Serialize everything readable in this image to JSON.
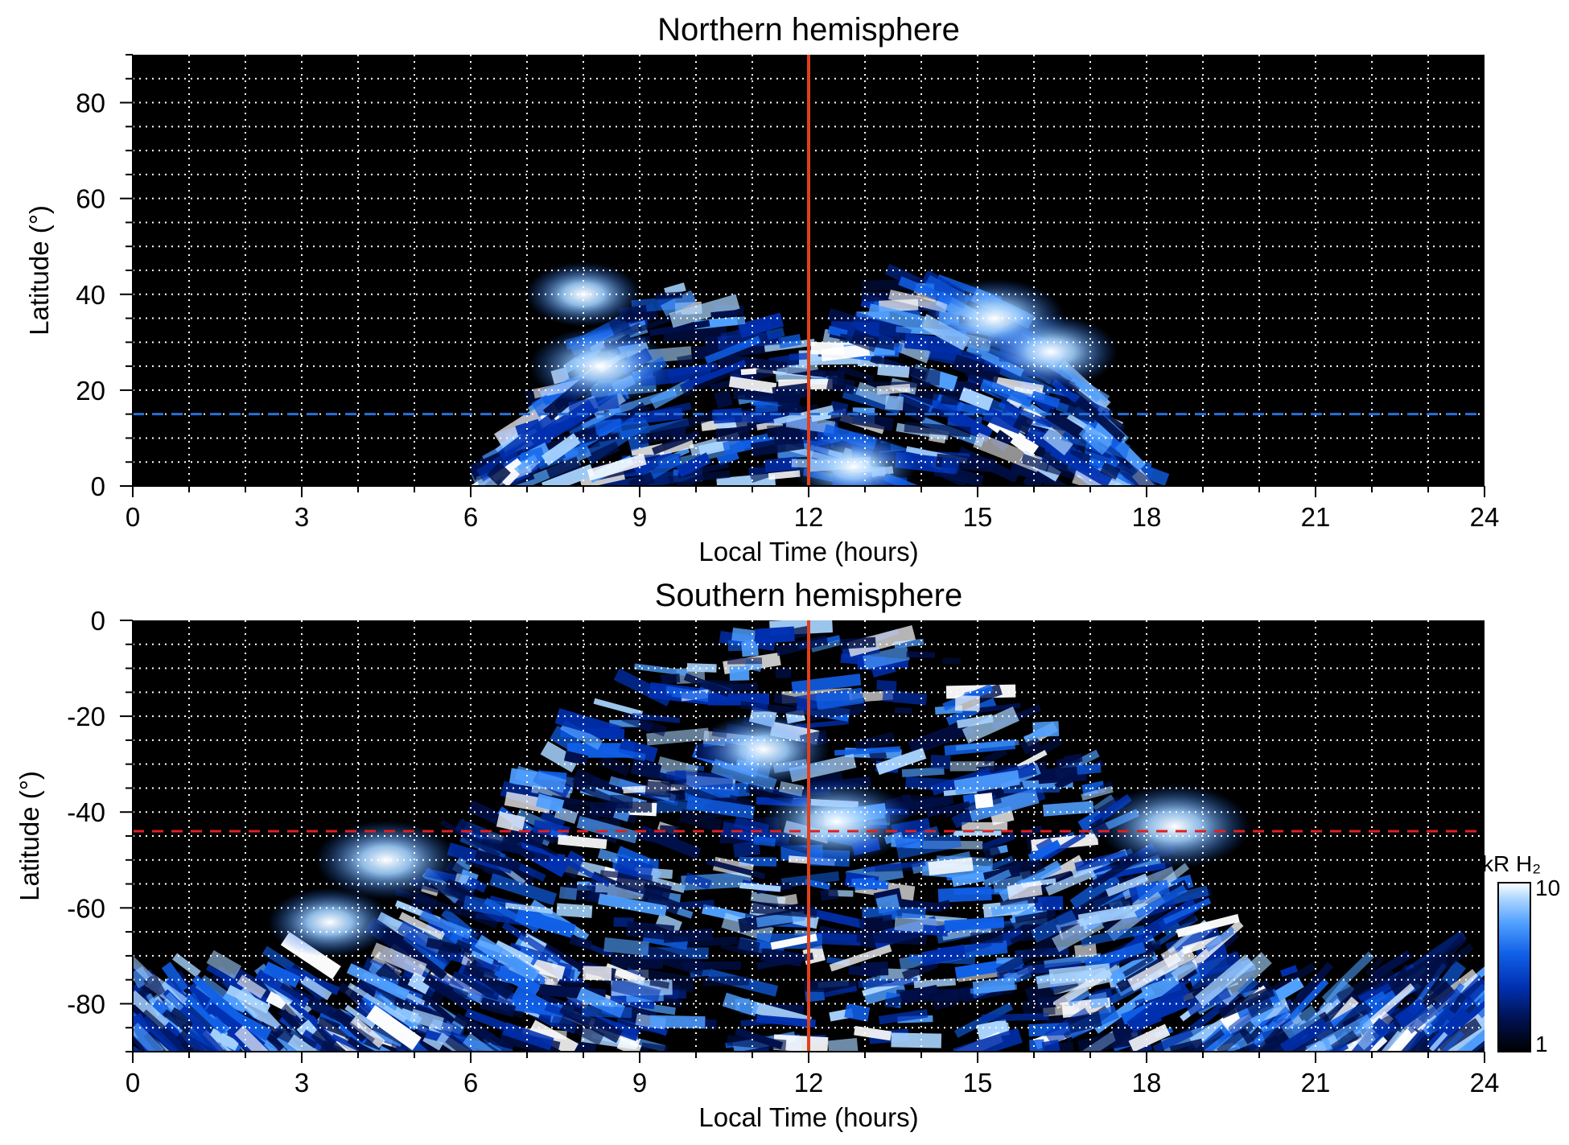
{
  "chart_data": [
    {
      "type": "heatmap",
      "title": "Northern hemisphere",
      "xlabel": "Local Time (hours)",
      "ylabel": "Latitude (°)",
      "xlim": [
        0,
        24
      ],
      "ylim": [
        0,
        90
      ],
      "xticks": [
        "0",
        "3",
        "6",
        "9",
        "12",
        "15",
        "18",
        "21",
        "24"
      ],
      "yticks": [
        "0",
        "20",
        "40",
        "60",
        "80"
      ],
      "ytick_values": [
        0,
        20,
        40,
        60,
        80
      ],
      "grid": true,
      "noon_line_x": 12,
      "dashed_line_y": 15,
      "dashed_line_color": "#2a6fd6",
      "noon_line_color": "#e0401a",
      "emission_region": {
        "lt_start": 6.3,
        "lt_end": 18.0,
        "lat_max": 55
      },
      "bright_spots": [
        {
          "lt": 8.3,
          "lat": 25,
          "intensity": 9
        },
        {
          "lt": 8.0,
          "lat": 40,
          "intensity": 6
        },
        {
          "lt": 15.3,
          "lat": 35,
          "intensity": 9
        },
        {
          "lt": 16.3,
          "lat": 28,
          "intensity": 8
        },
        {
          "lt": 12.8,
          "lat": 4,
          "intensity": 7
        }
      ]
    },
    {
      "type": "heatmap",
      "title": "Southern hemisphere",
      "xlabel": "Local Time (hours)",
      "ylabel": "Latitude (°)",
      "xlim": [
        0,
        24
      ],
      "ylim": [
        -90,
        0
      ],
      "xticks": [
        "0",
        "3",
        "6",
        "9",
        "12",
        "15",
        "18",
        "21",
        "24"
      ],
      "yticks": [
        "0",
        "-20",
        "-40",
        "-60",
        "-80"
      ],
      "ytick_values": [
        0,
        -20,
        -40,
        -60,
        -80
      ],
      "grid": true,
      "noon_line_x": 12,
      "dashed_line_y": -44,
      "dashed_line_color": "#e02020",
      "noon_line_color": "#e0401a",
      "emission_region": {
        "lt_start": 0,
        "lt_end": 24,
        "lat_min": -90
      },
      "bright_spots": [
        {
          "lt": 18.5,
          "lat": -43,
          "intensity": 10
        },
        {
          "lt": 12.5,
          "lat": -42,
          "intensity": 10
        },
        {
          "lt": 4.5,
          "lat": -50,
          "intensity": 9
        },
        {
          "lt": 11.2,
          "lat": -27,
          "intensity": 8
        },
        {
          "lt": 3.5,
          "lat": -63,
          "intensity": 7
        }
      ]
    }
  ],
  "colorbar": {
    "label": "kR H₂",
    "max_label": "10",
    "min_label": "1",
    "scale": "log",
    "range": [
      1,
      10
    ],
    "colors": [
      "#000000",
      "#00104a",
      "#0030b0",
      "#1060e8",
      "#50a0ff",
      "#a8d4ff",
      "#ffffff"
    ]
  }
}
